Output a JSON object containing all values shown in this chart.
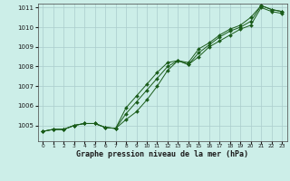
{
  "xlabel": "Graphe pression niveau de la mer (hPa)",
  "ylim": [
    1004.2,
    1011.2
  ],
  "xlim": [
    -0.5,
    23.5
  ],
  "yticks": [
    1005,
    1006,
    1007,
    1008,
    1009,
    1010,
    1011
  ],
  "xticks": [
    0,
    1,
    2,
    3,
    4,
    5,
    6,
    7,
    8,
    9,
    10,
    11,
    12,
    13,
    14,
    15,
    16,
    17,
    18,
    19,
    20,
    21,
    22,
    23
  ],
  "background_color": "#cceee8",
  "grid_color": "#aacccc",
  "line_color": "#1a5c1a",
  "series": [
    [
      1004.7,
      1004.8,
      1004.8,
      1005.0,
      1005.1,
      1005.1,
      1004.9,
      1004.85,
      1005.3,
      1005.7,
      1006.3,
      1007.0,
      1007.8,
      1008.3,
      1008.1,
      1008.5,
      1009.0,
      1009.3,
      1009.6,
      1009.9,
      1010.1,
      1011.0,
      1010.8,
      1010.7
    ],
    [
      1004.7,
      1004.8,
      1004.8,
      1005.0,
      1005.1,
      1005.1,
      1004.9,
      1004.85,
      1005.6,
      1006.2,
      1006.8,
      1007.4,
      1008.0,
      1008.3,
      1008.1,
      1008.7,
      1009.1,
      1009.5,
      1009.8,
      1010.0,
      1010.3,
      1011.1,
      1010.9,
      1010.8
    ],
    [
      1004.7,
      1004.8,
      1004.8,
      1005.0,
      1005.1,
      1005.1,
      1004.9,
      1004.85,
      1005.9,
      1006.5,
      1007.1,
      1007.7,
      1008.2,
      1008.3,
      1008.2,
      1008.9,
      1009.2,
      1009.6,
      1009.9,
      1010.1,
      1010.5,
      1011.1,
      1010.9,
      1010.8
    ]
  ],
  "figsize": [
    3.2,
    2.0
  ],
  "dpi": 100
}
